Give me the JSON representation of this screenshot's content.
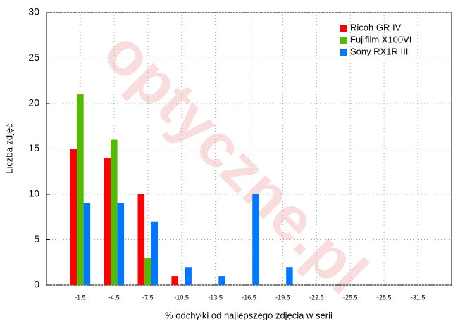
{
  "chart_data": {
    "type": "bar",
    "x_label": "% odchyłki od najlepszego zdjęcia w serii",
    "y_label": "Liczba zdjęć",
    "watermark": "optyczne.pl",
    "categories": [
      "-1.5",
      "-4.5",
      "-7.5",
      "-10.5",
      "-13.5",
      "-16.5",
      "-19.5",
      "-22.5",
      "-25.5",
      "-28.5",
      "-31.5"
    ],
    "series": [
      {
        "name": "Ricoh GR IV",
        "color": "#ff0000",
        "values": [
          15,
          14,
          10,
          1,
          0,
          0,
          0,
          0,
          0,
          0,
          0
        ]
      },
      {
        "name": "Fujifilm X100VI",
        "color": "#55bb00",
        "values": [
          21,
          16,
          3,
          0,
          0,
          0,
          0,
          0,
          0,
          0,
          0
        ]
      },
      {
        "name": "Sony RX1R III",
        "color": "#0077ff",
        "values": [
          9,
          9,
          7,
          2,
          1,
          10,
          2,
          0,
          0,
          0,
          0
        ]
      }
    ],
    "ylim": [
      0,
      30
    ],
    "yticks": [
      0,
      5,
      10,
      15,
      20,
      25,
      30
    ],
    "grid": true,
    "legend": "top-right"
  }
}
